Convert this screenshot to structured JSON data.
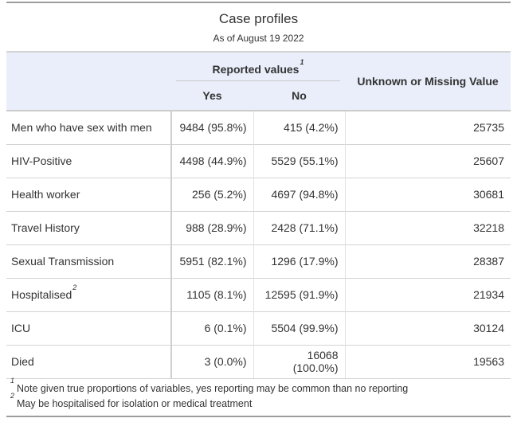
{
  "chart_data": {
    "type": "table",
    "title": "Case profiles",
    "subtitle": "As of August 19 2022",
    "spanner": {
      "label": "Reported values",
      "footnote_mark": "1"
    },
    "columns": {
      "yes": "Yes",
      "no": "No",
      "unknown": "Unknown or Missing Value"
    },
    "rows": [
      {
        "label": "Men who have sex with men",
        "yes": "9484 (95.8%)",
        "no": "415 (4.2%)",
        "unknown": "25735"
      },
      {
        "label": "HIV-Positive",
        "yes": "4498 (44.9%)",
        "no": "5529 (55.1%)",
        "unknown": "25607"
      },
      {
        "label": "Health worker",
        "yes": "256 (5.2%)",
        "no": "4697 (94.8%)",
        "unknown": "30681"
      },
      {
        "label": "Travel History",
        "yes": "988 (28.9%)",
        "no": "2428 (71.1%)",
        "unknown": "32218"
      },
      {
        "label": "Sexual Transmission",
        "yes": "5951 (82.1%)",
        "no": "1296 (17.9%)",
        "unknown": "28387"
      },
      {
        "label": "Hospitalised",
        "footnote_mark": "2",
        "yes": "1105 (8.1%)",
        "no": "12595 (91.9%)",
        "unknown": "21934"
      },
      {
        "label": "ICU",
        "yes": "6 (0.1%)",
        "no": "5504 (99.9%)",
        "unknown": "30124"
      },
      {
        "label": "Died",
        "yes": "3 (0.0%)",
        "no": "16068 (100.0%)",
        "unknown": "19563"
      }
    ],
    "footnotes": [
      {
        "mark": "1",
        "text": "Note given true proportions of variables, yes reporting may be common than no reporting"
      },
      {
        "mark": "2",
        "text": "May be hospitalised for isolation or medical treatment"
      }
    ],
    "layout_hints": {
      "legend": "none",
      "grid": "row-and-column-rules"
    }
  },
  "colors": {
    "header_bg": "#e9eefa",
    "outer_border": "#9d9d9d",
    "divider": "#d3d3d3",
    "text": "#333333",
    "page_bg": "#ffffff"
  }
}
